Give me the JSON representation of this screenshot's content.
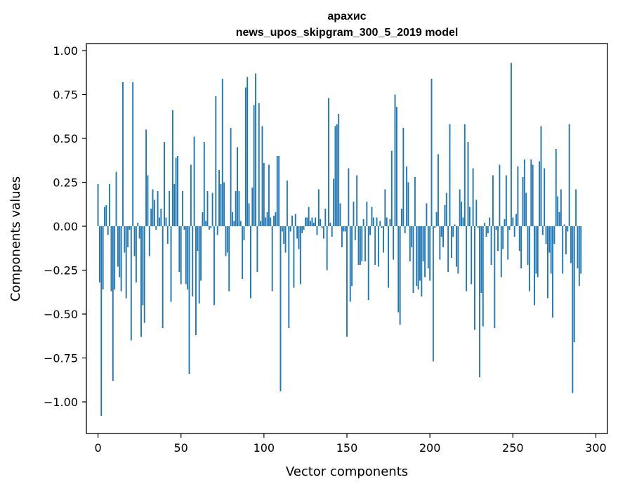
{
  "chart_data": {
    "type": "bar",
    "title": "арахис",
    "subtitle": "news_upos_skipgram_300_5_2019 model",
    "xlabel": "Vector components",
    "ylabel": "Components values",
    "xlim": [
      -7,
      307
    ],
    "ylim": [
      -1.18,
      1.04
    ],
    "xticks": [
      0,
      50,
      100,
      150,
      200,
      250,
      300
    ],
    "yticks": [
      -1.0,
      -0.75,
      -0.5,
      -0.25,
      0.0,
      0.25,
      0.5,
      0.75,
      1.0
    ],
    "xtick_labels": [
      "0",
      "50",
      "100",
      "150",
      "200",
      "250",
      "300"
    ],
    "ytick_labels": [
      "−1.00",
      "−0.75",
      "−0.50",
      "−0.25",
      "0.00",
      "0.25",
      "0.50",
      "0.75",
      "1.00"
    ],
    "grid": false,
    "bar_color": "#1f77b4",
    "values": [
      0.24,
      -0.32,
      -1.08,
      -0.36,
      0.11,
      0.12,
      -0.05,
      0.24,
      -0.37,
      -0.88,
      -0.36,
      0.31,
      -0.23,
      -0.29,
      -0.37,
      0.82,
      -0.15,
      -0.41,
      -0.12,
      -0.02,
      -0.65,
      0.82,
      -0.17,
      -0.32,
      0.02,
      -0.07,
      -0.63,
      -0.45,
      -0.55,
      0.55,
      0.29,
      -0.17,
      0.1,
      0.21,
      0.15,
      -0.02,
      0.2,
      0.05,
      0.1,
      -0.58,
      0.48,
      0.05,
      -0.1,
      0.2,
      -0.43,
      0.66,
      0.24,
      0.39,
      0.4,
      -0.26,
      -0.33,
      0.2,
      -0.02,
      -0.33,
      -0.36,
      -0.84,
      0.35,
      -0.4,
      0.51,
      -0.62,
      -0.14,
      -0.44,
      -0.31,
      0.08,
      0.48,
      0.03,
      0.2,
      -0.02,
      -0.01,
      0.19,
      -0.45,
      0.74,
      -0.05,
      0.32,
      0.24,
      0.84,
      0.25,
      -0.17,
      -0.15,
      -0.37,
      0.56,
      0.08,
      0.03,
      0.2,
      0.45,
      0.2,
      0.03,
      -0.3,
      -0.08,
      0.79,
      0.85,
      0.13,
      -0.41,
      0.22,
      0.69,
      0.87,
      -0.26,
      0.7,
      0.03,
      0.57,
      0.36,
      0.05,
      0.08,
      0.35,
      0.05,
      -0.37,
      0.06,
      0.08,
      0.4,
      0.4,
      -0.94,
      -0.03,
      -0.1,
      -0.15,
      0.26,
      -0.58,
      -0.03,
      0.06,
      -0.35,
      0.07,
      -0.07,
      -0.13,
      -0.33,
      -0.04,
      -0.02,
      0.05,
      0.05,
      0.11,
      0.03,
      0.05,
      0.02,
      0.05,
      -0.05,
      0.21,
      0.04,
      -0.01,
      -0.07,
      0.1,
      -0.25,
      0.73,
      0.02,
      -0.06,
      0.27,
      0.57,
      0.58,
      0.64,
      0.13,
      -0.12,
      -0.03,
      -0.03,
      -0.63,
      0.33,
      -0.43,
      -0.34,
      0.14,
      -0.08,
      0.29,
      -0.22,
      -0.22,
      -0.2,
      0.04,
      -0.2,
      0.14,
      -0.42,
      -0.05,
      0.11,
      0.05,
      -0.22,
      0.05,
      -0.23,
      0.03,
      -0.01,
      -0.15,
      0.21,
      0.05,
      -0.35,
      0.04,
      0.43,
      -0.19,
      0.75,
      0.68,
      -0.49,
      -0.56,
      0.1,
      0.56,
      -0.04,
      0.34,
      0.25,
      -0.2,
      -0.12,
      -0.38,
      0.28,
      -0.34,
      -0.36,
      -0.31,
      -0.4,
      -0.2,
      -0.29,
      0.13,
      -0.24,
      -0.31,
      0.84,
      -0.77,
      -0.01,
      0.08,
      0.41,
      -0.19,
      -0.06,
      -0.12,
      0.12,
      0.19,
      -0.26,
      0.58,
      -0.18,
      -0.06,
      0.01,
      -0.23,
      -0.27,
      0.21,
      0.14,
      0.05,
      0.58,
      -0.37,
      0.48,
      0.11,
      -0.33,
      0.33,
      -0.59,
      0.15,
      -0.01,
      -0.86,
      -0.38,
      -0.57,
      0.02,
      -0.06,
      -0.04,
      0.05,
      -0.22,
      0.29,
      -0.58,
      -0.02,
      -0.14,
      0.35,
      -0.29,
      -0.13,
      0.04,
      0.29,
      -0.19,
      -0.02,
      0.93,
      0.05,
      -0.06,
      0.07,
      0.34,
      -0.14,
      -0.24,
      0.28,
      0.38,
      0.19,
      -0.22,
      -0.37,
      0.38,
      0.35,
      -0.45,
      -0.27,
      -0.29,
      0.37,
      0.57,
      -0.05,
      0.33,
      -0.1,
      -0.41,
      -0.15,
      -0.27,
      -0.52,
      -0.1,
      0.44,
      0.17,
      0.08,
      0.21,
      -0.27,
      0.01,
      -0.16,
      -0.03,
      0.58,
      -0.21,
      -0.95,
      -0.66,
      0.21,
      -0.24,
      -0.34,
      -0.27
    ]
  }
}
